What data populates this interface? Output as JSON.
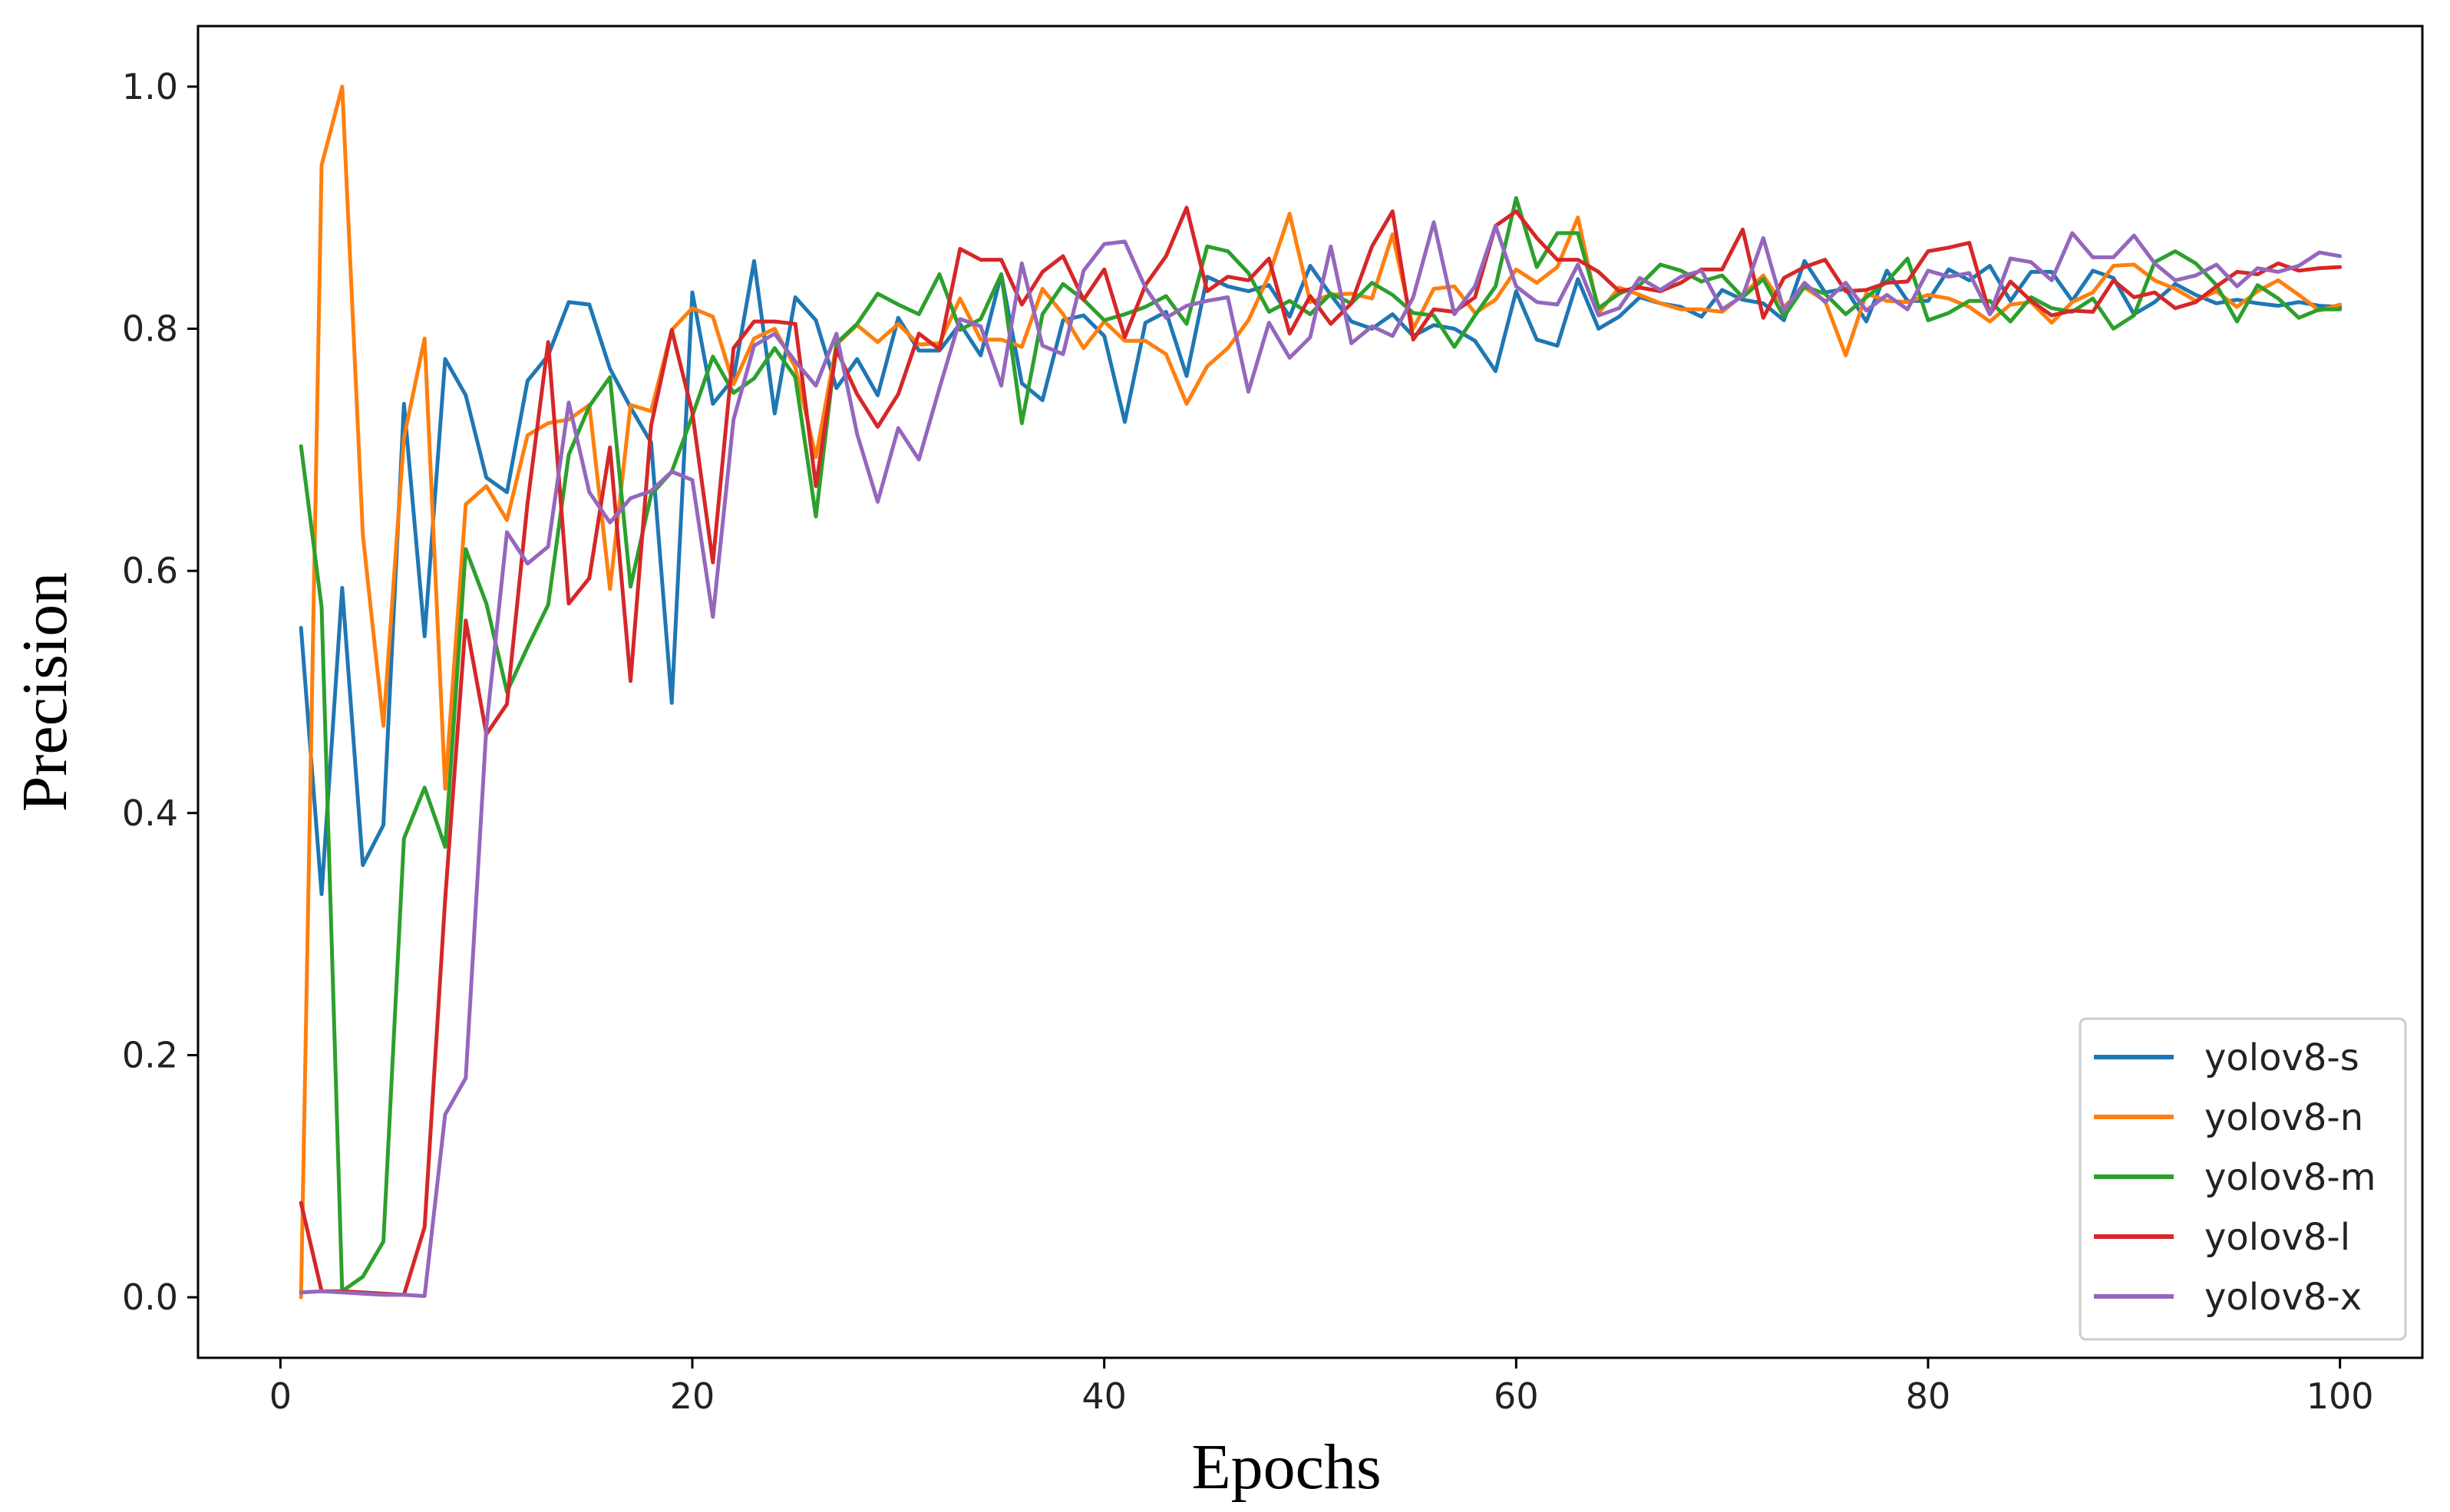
{
  "chart_data": {
    "type": "line",
    "xlabel": "Epochs",
    "ylabel": "Precision",
    "xlim": [
      -4,
      104
    ],
    "ylim": [
      -0.05,
      1.05
    ],
    "xticks": [
      0,
      20,
      40,
      60,
      80,
      100
    ],
    "yticks": [
      0.0,
      0.2,
      0.4,
      0.6,
      0.8,
      1.0
    ],
    "xtick_labels": [
      "0",
      "20",
      "40",
      "60",
      "80",
      "100"
    ],
    "ytick_labels": [
      "0.0",
      "0.2",
      "0.4",
      "0.6",
      "0.8",
      "1.0"
    ],
    "grid": false,
    "legend_position": "bottom-right",
    "x": [
      1,
      2,
      3,
      4,
      5,
      6,
      7,
      8,
      9,
      10,
      11,
      12,
      13,
      14,
      15,
      16,
      17,
      18,
      19,
      20,
      21,
      22,
      23,
      24,
      25,
      26,
      27,
      28,
      29,
      30,
      31,
      32,
      33,
      34,
      35,
      36,
      37,
      38,
      39,
      40,
      41,
      42,
      43,
      44,
      45,
      46,
      47,
      48,
      49,
      50,
      51,
      52,
      53,
      54,
      55,
      56,
      57,
      58,
      59,
      60,
      61,
      62,
      63,
      64,
      65,
      66,
      67,
      68,
      69,
      70,
      71,
      72,
      73,
      74,
      75,
      76,
      77,
      78,
      79,
      80,
      81,
      82,
      83,
      84,
      85,
      86,
      87,
      88,
      89,
      90,
      91,
      92,
      93,
      94,
      95,
      96,
      97,
      98,
      99,
      100
    ],
    "series": [
      {
        "name": "yolov8-s",
        "color": "#1f77b4",
        "values": [
          0.553,
          0.333,
          0.586,
          0.357,
          0.39,
          0.738,
          0.546,
          0.775,
          0.745,
          0.677,
          0.665,
          0.757,
          0.778,
          0.822,
          0.82,
          0.767,
          0.735,
          0.706,
          0.491,
          0.83,
          0.738,
          0.759,
          0.856,
          0.73,
          0.826,
          0.807,
          0.751,
          0.775,
          0.745,
          0.809,
          0.782,
          0.782,
          0.804,
          0.778,
          0.845,
          0.755,
          0.741,
          0.807,
          0.811,
          0.794,
          0.723,
          0.805,
          0.814,
          0.761,
          0.843,
          0.835,
          0.831,
          0.836,
          0.81,
          0.852,
          0.828,
          0.806,
          0.8,
          0.812,
          0.794,
          0.803,
          0.8,
          0.79,
          0.765,
          0.831,
          0.791,
          0.786,
          0.841,
          0.8,
          0.81,
          0.826,
          0.821,
          0.818,
          0.81,
          0.832,
          0.824,
          0.821,
          0.807,
          0.856,
          0.83,
          0.833,
          0.806,
          0.848,
          0.823,
          0.823,
          0.849,
          0.84,
          0.852,
          0.823,
          0.847,
          0.847,
          0.823,
          0.848,
          0.842,
          0.812,
          0.822,
          0.837,
          0.828,
          0.821,
          0.824,
          0.821,
          0.819,
          0.822,
          0.819,
          0.818
        ]
      },
      {
        "name": "yolov8-n",
        "color": "#ff7f0e",
        "values": [
          0.0,
          0.935,
          1.0,
          0.63,
          0.472,
          0.71,
          0.792,
          0.42,
          0.655,
          0.67,
          0.642,
          0.712,
          0.722,
          0.725,
          0.737,
          0.585,
          0.737,
          0.732,
          0.799,
          0.817,
          0.81,
          0.754,
          0.792,
          0.8,
          0.768,
          0.694,
          0.787,
          0.803,
          0.789,
          0.804,
          0.787,
          0.788,
          0.825,
          0.791,
          0.791,
          0.785,
          0.833,
          0.812,
          0.784,
          0.806,
          0.79,
          0.79,
          0.779,
          0.738,
          0.769,
          0.784,
          0.807,
          0.844,
          0.895,
          0.822,
          0.828,
          0.829,
          0.825,
          0.878,
          0.8,
          0.833,
          0.835,
          0.813,
          0.824,
          0.849,
          0.838,
          0.851,
          0.892,
          0.813,
          0.834,
          0.828,
          0.821,
          0.816,
          0.816,
          0.814,
          0.828,
          0.844,
          0.818,
          0.834,
          0.823,
          0.778,
          0.829,
          0.823,
          0.822,
          0.828,
          0.825,
          0.818,
          0.806,
          0.82,
          0.822,
          0.805,
          0.822,
          0.83,
          0.852,
          0.853,
          0.84,
          0.833,
          0.823,
          0.831,
          0.818,
          0.831,
          0.84,
          0.828,
          0.815,
          0.82
        ]
      },
      {
        "name": "yolov8-m",
        "color": "#2ca02c",
        "values": [
          0.703,
          0.57,
          0.005,
          0.017,
          0.046,
          0.379,
          0.421,
          0.372,
          0.618,
          0.573,
          0.5,
          0.537,
          0.572,
          0.696,
          0.736,
          0.76,
          0.587,
          0.663,
          0.682,
          0.728,
          0.777,
          0.747,
          0.759,
          0.784,
          0.76,
          0.645,
          0.788,
          0.804,
          0.829,
          0.82,
          0.812,
          0.845,
          0.799,
          0.808,
          0.845,
          0.722,
          0.812,
          0.837,
          0.824,
          0.807,
          0.812,
          0.818,
          0.827,
          0.804,
          0.868,
          0.864,
          0.846,
          0.814,
          0.823,
          0.812,
          0.829,
          0.821,
          0.838,
          0.828,
          0.813,
          0.811,
          0.785,
          0.811,
          0.835,
          0.908,
          0.851,
          0.879,
          0.879,
          0.817,
          0.829,
          0.836,
          0.853,
          0.848,
          0.839,
          0.844,
          0.826,
          0.841,
          0.81,
          0.835,
          0.829,
          0.812,
          0.826,
          0.839,
          0.858,
          0.807,
          0.813,
          0.823,
          0.823,
          0.806,
          0.826,
          0.817,
          0.814,
          0.825,
          0.8,
          0.811,
          0.855,
          0.864,
          0.854,
          0.836,
          0.806,
          0.836,
          0.825,
          0.809,
          0.816,
          0.816
        ]
      },
      {
        "name": "yolov8-l",
        "color": "#d62728",
        "values": [
          0.078,
          0.005,
          0.005,
          0.004,
          0.003,
          0.002,
          0.058,
          0.329,
          0.559,
          0.465,
          0.49,
          0.656,
          0.789,
          0.573,
          0.594,
          0.702,
          0.509,
          0.72,
          0.799,
          0.731,
          0.607,
          0.784,
          0.806,
          0.806,
          0.804,
          0.67,
          0.783,
          0.746,
          0.719,
          0.746,
          0.796,
          0.783,
          0.866,
          0.857,
          0.857,
          0.82,
          0.847,
          0.86,
          0.824,
          0.849,
          0.793,
          0.836,
          0.86,
          0.9,
          0.831,
          0.843,
          0.84,
          0.858,
          0.796,
          0.827,
          0.804,
          0.821,
          0.868,
          0.897,
          0.791,
          0.816,
          0.814,
          0.826,
          0.885,
          0.897,
          0.875,
          0.857,
          0.857,
          0.847,
          0.831,
          0.834,
          0.831,
          0.838,
          0.849,
          0.849,
          0.882,
          0.809,
          0.842,
          0.851,
          0.857,
          0.831,
          0.832,
          0.838,
          0.839,
          0.864,
          0.867,
          0.871,
          0.812,
          0.839,
          0.823,
          0.811,
          0.815,
          0.814,
          0.84,
          0.826,
          0.83,
          0.817,
          0.822,
          0.835,
          0.847,
          0.845,
          0.854,
          0.848,
          0.85,
          0.851
        ]
      },
      {
        "name": "yolov8-x",
        "color": "#9467bd",
        "values": [
          0.004,
          0.005,
          0.004,
          0.003,
          0.002,
          0.002,
          0.001,
          0.151,
          0.181,
          0.471,
          0.632,
          0.606,
          0.62,
          0.739,
          0.665,
          0.64,
          0.66,
          0.666,
          0.682,
          0.675,
          0.562,
          0.725,
          0.786,
          0.796,
          0.773,
          0.753,
          0.796,
          0.713,
          0.657,
          0.718,
          0.692,
          0.751,
          0.808,
          0.802,
          0.753,
          0.854,
          0.786,
          0.779,
          0.848,
          0.87,
          0.872,
          0.834,
          0.809,
          0.819,
          0.823,
          0.826,
          0.748,
          0.805,
          0.776,
          0.793,
          0.868,
          0.788,
          0.802,
          0.794,
          0.826,
          0.888,
          0.812,
          0.835,
          0.885,
          0.835,
          0.822,
          0.82,
          0.853,
          0.811,
          0.817,
          0.842,
          0.832,
          0.843,
          0.848,
          0.816,
          0.827,
          0.875,
          0.815,
          0.838,
          0.822,
          0.838,
          0.815,
          0.828,
          0.816,
          0.848,
          0.843,
          0.846,
          0.812,
          0.858,
          0.855,
          0.84,
          0.879,
          0.859,
          0.859,
          0.877,
          0.854,
          0.84,
          0.844,
          0.853,
          0.835,
          0.85,
          0.847,
          0.852,
          0.863,
          0.86
        ]
      }
    ]
  }
}
